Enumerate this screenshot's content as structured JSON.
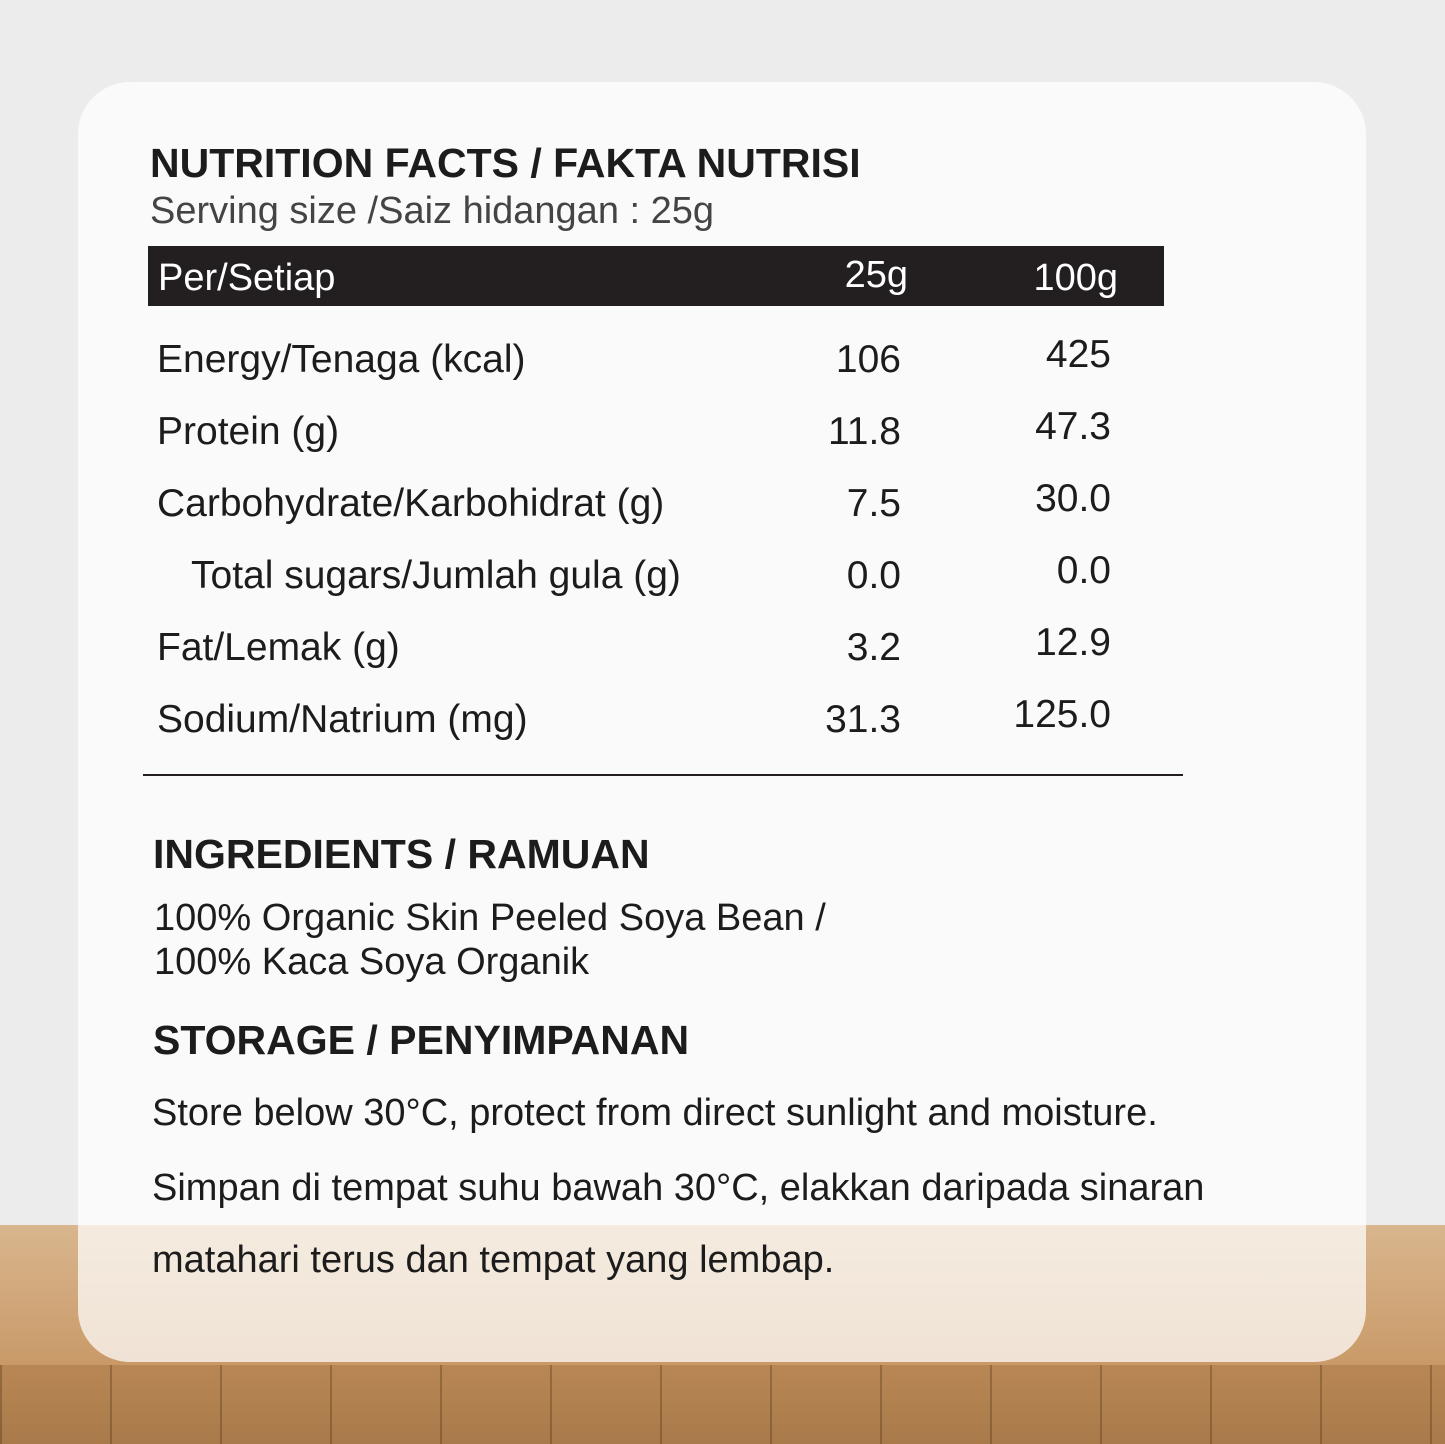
{
  "nutrition": {
    "title": "NUTRITION FACTS / FAKTA NUTRISI",
    "serving": "Serving size /Saiz hidangan : 25g",
    "header": [
      "Per/Setiap",
      "25g",
      "100g"
    ],
    "rows": [
      [
        "Energy/Tenaga (kcal)",
        "106",
        "425"
      ],
      [
        "Protein (g)",
        "11.8",
        "47.3"
      ],
      [
        "Carbohydrate/Karbohidrat (g)",
        "7.5",
        "30.0"
      ],
      [
        "Total sugars/Jumlah gula (g)",
        "0.0",
        "0.0"
      ],
      [
        "Fat/Lemak (g)",
        "3.2",
        "12.9"
      ],
      [
        "Sodium/Natrium (mg)",
        "31.3",
        "125.0"
      ]
    ]
  },
  "ingredients": {
    "title": "INGREDIENTS / RAMUAN",
    "lines": [
      "100% Organic Skin Peeled Soya Bean /",
      "100% Kaca Soya Organik"
    ]
  },
  "storage": {
    "title": "STORAGE / PENYIMPANAN",
    "lines": [
      "Store below 30°C, protect from direct sunlight and moisture.",
      "Simpan di tempat suhu bawah 30°C, elakkan daripada sinaran",
      "matahari terus dan tempat yang lembap."
    ]
  }
}
